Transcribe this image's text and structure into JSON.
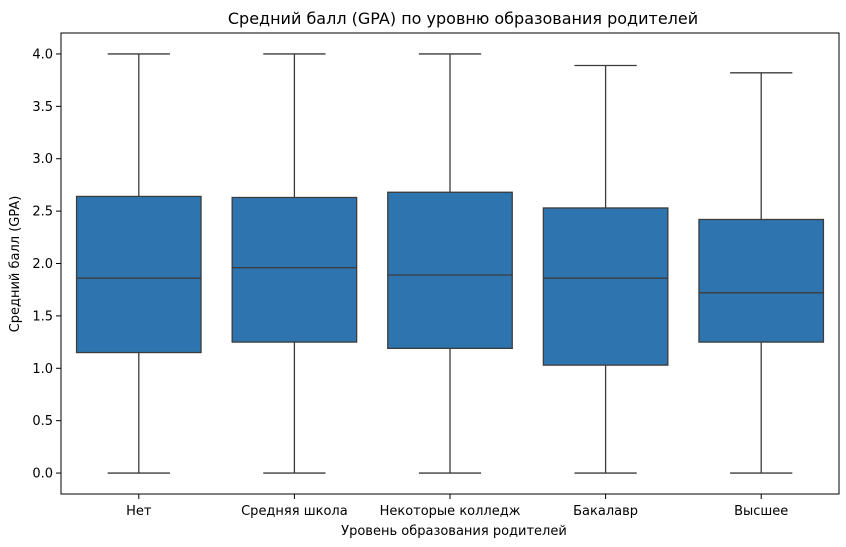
{
  "chart_data": {
    "type": "box",
    "title": "Средний балл (GPA) по уровню образования родителей",
    "xlabel": "Уровень образования родителей",
    "ylabel": "Средний балл (GPA)",
    "ylim": [
      -0.2,
      4.2
    ],
    "yticks": [
      "0.0",
      "0.5",
      "1.0",
      "1.5",
      "2.0",
      "2.5",
      "3.0",
      "3.5",
      "4.0"
    ],
    "categories": [
      "Нет",
      "Средняя школа",
      "Некоторые колледж",
      "Бакалавр",
      "Высшее"
    ],
    "boxes": [
      {
        "category": "Нет",
        "whisker_low": 0.0,
        "q1": 1.15,
        "median": 1.86,
        "q3": 2.64,
        "whisker_high": 4.0
      },
      {
        "category": "Средняя школа",
        "whisker_low": 0.0,
        "q1": 1.25,
        "median": 1.96,
        "q3": 2.63,
        "whisker_high": 4.0
      },
      {
        "category": "Некоторые колледж",
        "whisker_low": 0.0,
        "q1": 1.19,
        "median": 1.89,
        "q3": 2.68,
        "whisker_high": 4.0
      },
      {
        "category": "Бакалавр",
        "whisker_low": 0.0,
        "q1": 1.03,
        "median": 1.86,
        "q3": 2.53,
        "whisker_high": 3.89
      },
      {
        "category": "Высшее",
        "whisker_low": 0.0,
        "q1": 1.25,
        "median": 1.72,
        "q3": 2.42,
        "whisker_high": 3.82
      }
    ],
    "colors": {
      "box_fill": "#2e75b0",
      "line": "#3c3c3c"
    },
    "grid": false,
    "legend": "none"
  }
}
